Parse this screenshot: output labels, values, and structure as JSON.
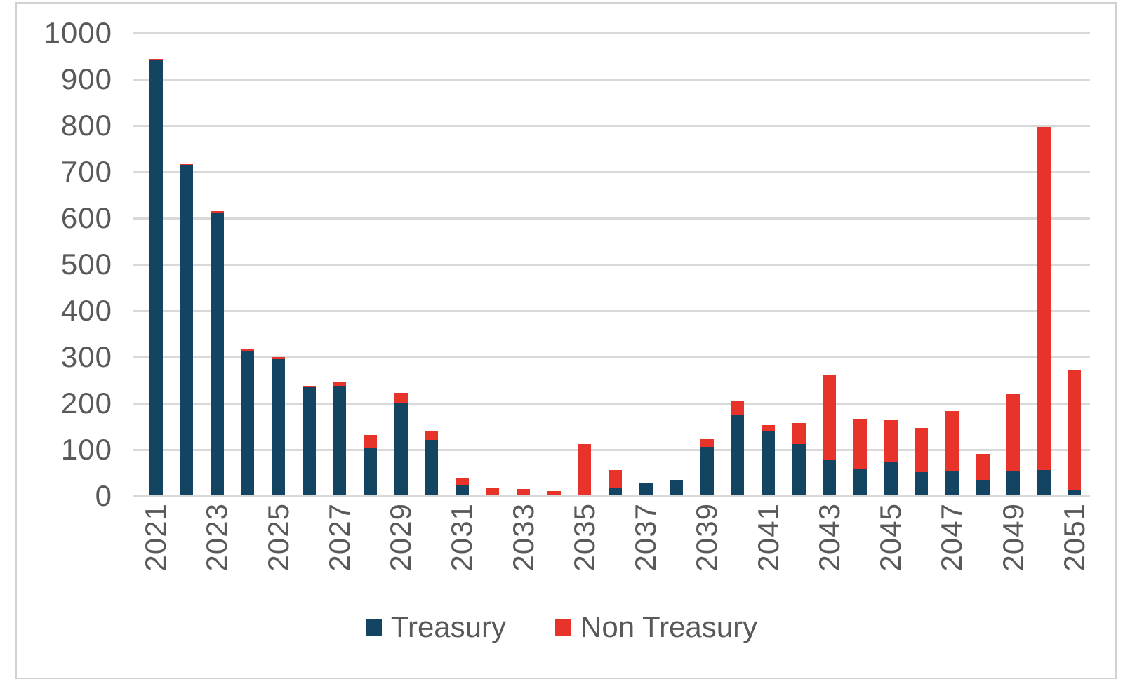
{
  "chart_data": {
    "type": "bar",
    "stacked": true,
    "title": "",
    "xlabel": "",
    "ylabel": "",
    "ylim": [
      0,
      1000
    ],
    "y_ticks": [
      0,
      100,
      200,
      300,
      400,
      500,
      600,
      700,
      800,
      900,
      1000
    ],
    "grid": true,
    "legend_position": "bottom",
    "x_tick_step": 2,
    "categories": [
      "2021",
      "2022",
      "2023",
      "2024",
      "2025",
      "2026",
      "2027",
      "2028",
      "2029",
      "2030",
      "2031",
      "2032",
      "2033",
      "2034",
      "2035",
      "2036",
      "2037",
      "2038",
      "2039",
      "2040",
      "2041",
      "2042",
      "2043",
      "2044",
      "2045",
      "2046",
      "2047",
      "2048",
      "2049",
      "2050",
      "2051"
    ],
    "series": [
      {
        "name": "Treasury",
        "color": "#134563",
        "values": [
          940,
          713,
          610,
          310,
          294,
          233,
          236,
          102,
          198,
          119,
          21,
          0,
          0,
          0,
          0,
          16,
          28,
          34,
          104,
          172,
          139,
          111,
          78,
          56,
          73,
          50,
          51,
          34,
          51,
          55,
          10
        ]
      },
      {
        "name": "Non Treasury",
        "color": "#e8332a",
        "values": [
          3,
          2,
          4,
          5,
          4,
          3,
          10,
          28,
          23,
          20,
          15,
          15,
          13,
          9,
          110,
          38,
          0,
          0,
          18,
          32,
          12,
          45,
          182,
          109,
          90,
          95,
          131,
          56,
          167,
          740,
          260
        ]
      }
    ]
  },
  "colors": {
    "background": "#ffffff",
    "frame_border": "#cfd2d4",
    "gridline": "#d9d9d9",
    "axis_text": "#595959",
    "treasury": "#134563",
    "non_treasury": "#e8332a"
  }
}
